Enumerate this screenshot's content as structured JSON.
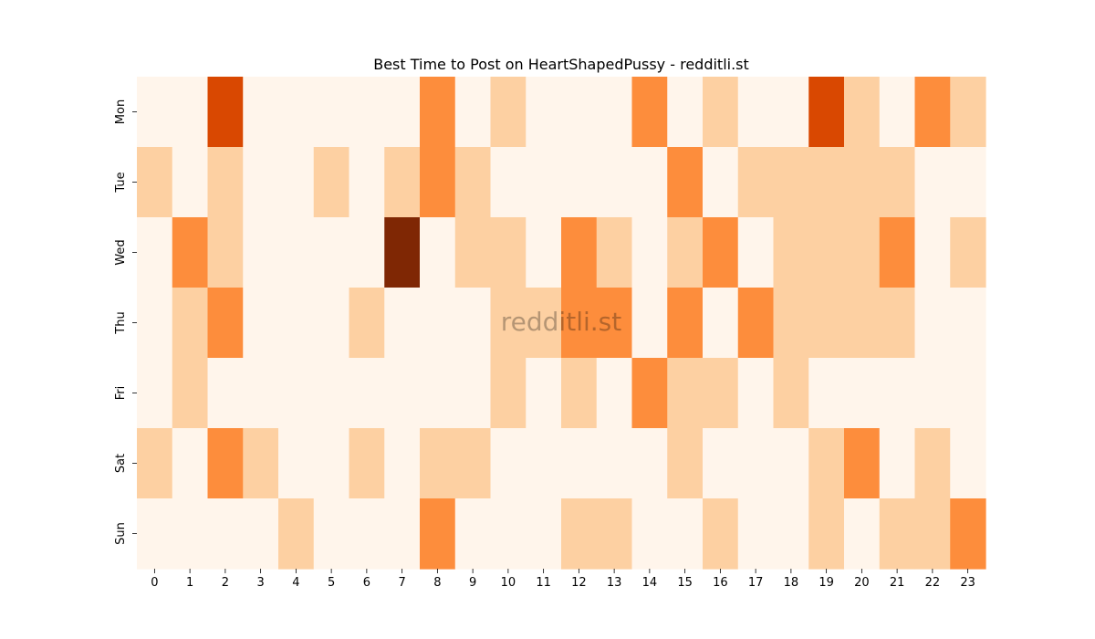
{
  "chart_data": {
    "type": "heatmap",
    "title": "Best Time to Post on HeartShapedPussy - redditli.st",
    "watermark": "redditli.st",
    "xlabel": "",
    "ylabel": "",
    "x": [
      0,
      1,
      2,
      3,
      4,
      5,
      6,
      7,
      8,
      9,
      10,
      11,
      12,
      13,
      14,
      15,
      16,
      17,
      18,
      19,
      20,
      21,
      22,
      23
    ],
    "y": [
      "Mon",
      "Tue",
      "Wed",
      "Thu",
      "Fri",
      "Sat",
      "Sun"
    ],
    "colormap": "Oranges",
    "levels": 5,
    "level_colors": [
      "#fff5eb",
      "#fdd0a2",
      "#fd8d3c",
      "#d94801",
      "#7f2704"
    ],
    "values": [
      [
        0,
        0,
        3,
        0,
        0,
        0,
        0,
        0,
        2,
        0,
        1,
        0,
        0,
        0,
        2,
        0,
        1,
        0,
        0,
        3,
        1,
        0,
        2,
        1
      ],
      [
        1,
        0,
        1,
        0,
        0,
        1,
        0,
        1,
        2,
        1,
        0,
        0,
        0,
        0,
        0,
        2,
        0,
        1,
        1,
        1,
        1,
        1,
        0,
        0
      ],
      [
        0,
        2,
        1,
        0,
        0,
        0,
        0,
        4,
        0,
        1,
        1,
        0,
        2,
        1,
        0,
        1,
        2,
        0,
        1,
        1,
        1,
        2,
        0,
        1
      ],
      [
        0,
        1,
        2,
        0,
        0,
        0,
        1,
        0,
        0,
        0,
        1,
        1,
        2,
        2,
        0,
        2,
        0,
        2,
        1,
        1,
        1,
        1,
        0,
        0
      ],
      [
        0,
        1,
        0,
        0,
        0,
        0,
        0,
        0,
        0,
        0,
        1,
        0,
        1,
        0,
        2,
        1,
        1,
        0,
        1,
        0,
        0,
        0,
        0,
        0
      ],
      [
        1,
        0,
        2,
        1,
        0,
        0,
        1,
        0,
        1,
        1,
        0,
        0,
        0,
        0,
        0,
        1,
        0,
        0,
        0,
        1,
        2,
        0,
        1,
        0
      ],
      [
        0,
        0,
        0,
        0,
        1,
        0,
        0,
        0,
        2,
        0,
        0,
        0,
        1,
        1,
        0,
        0,
        1,
        0,
        0,
        1,
        0,
        1,
        1,
        2
      ]
    ]
  }
}
